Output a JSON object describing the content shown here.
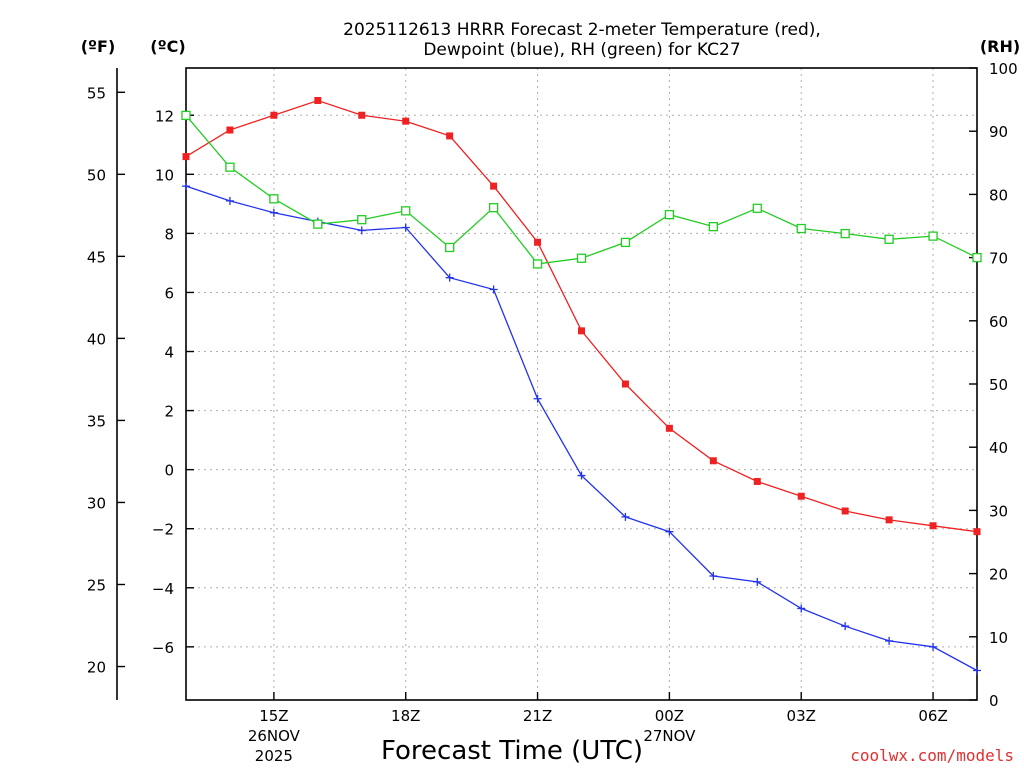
{
  "title_line1": "2025112613 HRRR Forecast 2-meter Temperature (red),",
  "title_line2": "Dewpoint (blue), RH (green) for KC27",
  "unit_f": "(ºF)",
  "unit_c": "(ºC)",
  "unit_rh": "(RH)",
  "credit": "coolwx.com/models",
  "chart_data": {
    "type": "line",
    "title": "2025112613 HRRR Forecast 2-meter Temperature (red), Dewpoint (blue), RH (green) for KC27",
    "xlabel": "Forecast Time (UTC)",
    "ylabel_left_c": "(ºC)",
    "ylabel_left_f": "(ºF)",
    "ylabel_right": "(RH)",
    "x_hours": [
      13,
      14,
      15,
      16,
      17,
      18,
      19,
      20,
      21,
      22,
      23,
      24,
      25,
      26,
      27,
      28,
      29,
      30,
      31
    ],
    "xlim": [
      13,
      31
    ],
    "ylim_c": [
      -7.8,
      13.6
    ],
    "ylim_rh": [
      0,
      100
    ],
    "x_ticks": [
      {
        "hour": 15,
        "label": "15Z",
        "sub1": "26NOV",
        "sub2": "2025"
      },
      {
        "hour": 18,
        "label": "18Z",
        "sub1": "",
        "sub2": ""
      },
      {
        "hour": 21,
        "label": "21Z",
        "sub1": "",
        "sub2": ""
      },
      {
        "hour": 24,
        "label": "00Z",
        "sub1": "27NOV",
        "sub2": ""
      },
      {
        "hour": 27,
        "label": "03Z",
        "sub1": "",
        "sub2": ""
      },
      {
        "hour": 30,
        "label": "06Z",
        "sub1": "",
        "sub2": ""
      }
    ],
    "y_ticks_c": [
      12,
      10,
      8,
      6,
      4,
      2,
      0,
      -2,
      -4,
      -6
    ],
    "y_tick_labels_c": [
      "12",
      "10",
      "8",
      "6",
      "4",
      "2",
      "0",
      "−2",
      "−4",
      "−6"
    ],
    "y_ticks_f": [
      55,
      50,
      45,
      40,
      35,
      30,
      25,
      20
    ],
    "y_ticks_rh": [
      100,
      90,
      80,
      70,
      60,
      50,
      40,
      30,
      20,
      10,
      0
    ],
    "series": [
      {
        "name": "Temperature",
        "color": "#ee2222",
        "marker": "filled-square",
        "axis": "c",
        "values": [
          10.6,
          11.5,
          12.0,
          12.5,
          12.0,
          11.8,
          11.3,
          9.6,
          7.7,
          4.7,
          2.9,
          1.4,
          0.3,
          -0.4,
          -0.9,
          -1.4,
          -1.7,
          -1.9,
          -2.1
        ]
      },
      {
        "name": "Dewpoint",
        "color": "#2233ee",
        "marker": "plus",
        "axis": "c",
        "values": [
          9.6,
          9.1,
          8.7,
          8.4,
          8.1,
          8.2,
          6.5,
          6.1,
          2.4,
          -0.2,
          -1.6,
          -2.1,
          -3.6,
          -3.8,
          -4.7,
          -5.3,
          -5.8,
          -6.0,
          -6.8
        ]
      },
      {
        "name": "RH",
        "color": "#22cc22",
        "marker": "open-square",
        "axis": "rh",
        "values": [
          92.5,
          84.3,
          79.3,
          75.3,
          76.0,
          77.4,
          71.6,
          77.9,
          69.0,
          69.9,
          72.4,
          76.8,
          74.9,
          77.8,
          74.6,
          73.8,
          72.9,
          73.4,
          70.0
        ]
      }
    ]
  }
}
